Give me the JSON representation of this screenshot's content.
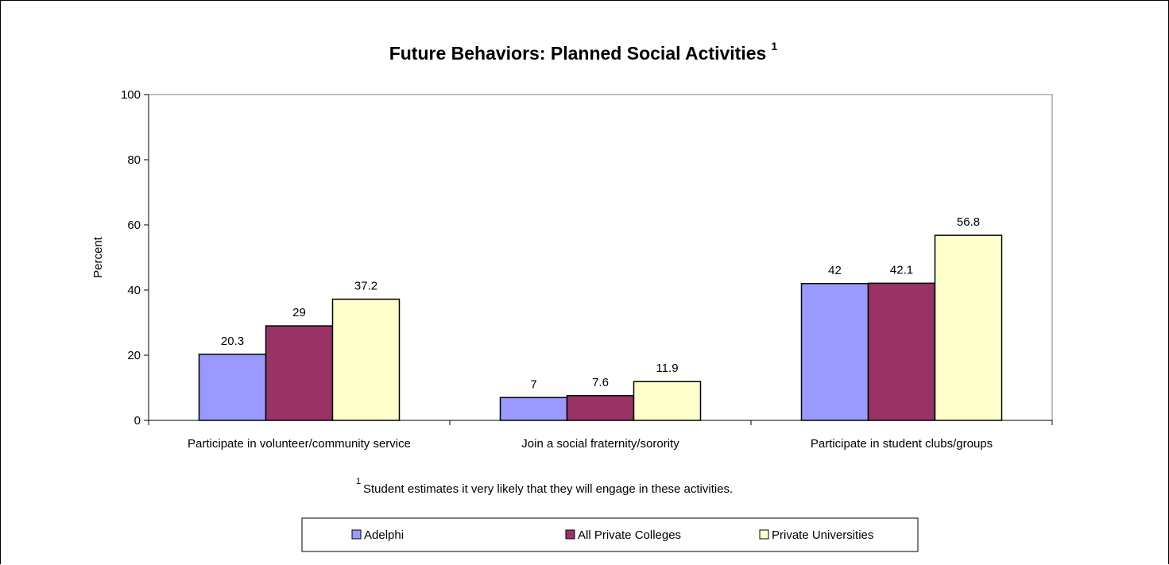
{
  "chart_data": {
    "type": "bar",
    "title": "Future Behaviors: Planned Social Activities",
    "title_superscript": "1",
    "ylabel": "Percent",
    "xlabel": "",
    "ylim": [
      0,
      100
    ],
    "yticks": [
      0,
      20,
      40,
      60,
      80,
      100
    ],
    "categories": [
      "Participate in volunteer/community service",
      "Join a social fraternity/sorority",
      "Participate in student clubs/groups"
    ],
    "series": [
      {
        "name": "Adelphi",
        "values": [
          20.3,
          7,
          42
        ],
        "color": "#9999ff"
      },
      {
        "name": "All Private Colleges",
        "values": [
          29,
          7.6,
          42.1
        ],
        "color": "#993366"
      },
      {
        "name": "Private Universities",
        "values": [
          37.2,
          11.9,
          56.8
        ],
        "color": "#ffffcc"
      }
    ],
    "data_labels": [
      [
        "20.3",
        "7",
        "42"
      ],
      [
        "29",
        "7.6",
        "42.1"
      ],
      [
        "37.2",
        "11.9",
        "56.8"
      ]
    ],
    "grid": false,
    "legend_position": "bottom",
    "footnote_marker": "1",
    "footnote": "Student estimates it very likely that they will engage in these activities."
  }
}
